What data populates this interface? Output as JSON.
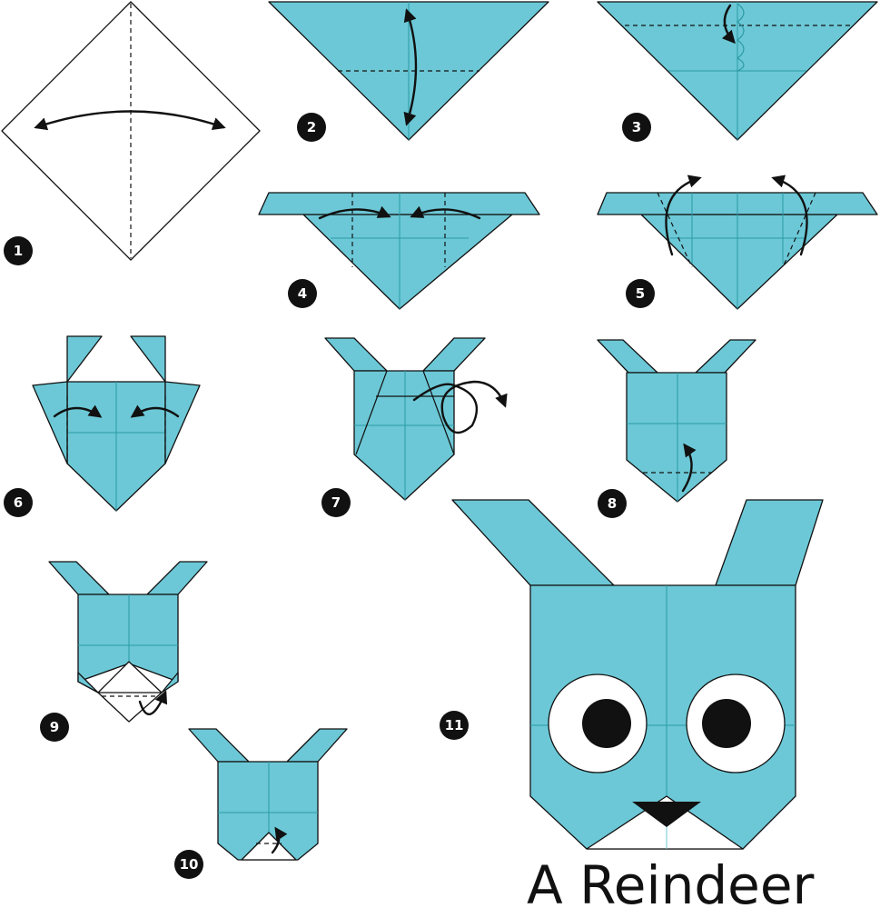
{
  "title": "A Reindeer",
  "colors": {
    "paper": "#6cc8d6",
    "crease": "#2a9aa5",
    "ink": "#111111",
    "white": "#ffffff"
  },
  "steps": [
    {
      "label": "1"
    },
    {
      "label": "2"
    },
    {
      "label": "3"
    },
    {
      "label": "4"
    },
    {
      "label": "5"
    },
    {
      "label": "6"
    },
    {
      "label": "7"
    },
    {
      "label": "8"
    },
    {
      "label": "9"
    },
    {
      "label": "10"
    },
    {
      "label": "11"
    }
  ]
}
